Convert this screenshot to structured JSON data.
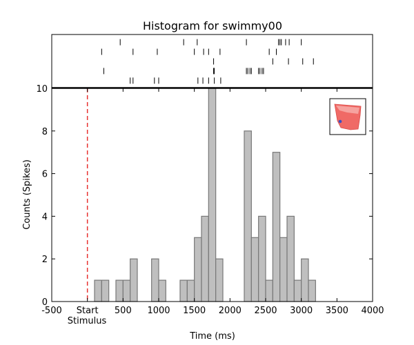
{
  "chart_data": {
    "type": "bar",
    "title": "Histogram for swimmy00",
    "xlabel": "Time (ms)",
    "ylabel": "Counts (Spikes)",
    "xlim": [
      -500,
      4000
    ],
    "ylim": [
      0,
      10
    ],
    "x_ticks": [
      {
        "value": -500,
        "label": "-500"
      },
      {
        "value": 0,
        "label": "Start"
      },
      {
        "value": 500,
        "label": "500"
      },
      {
        "value": 1000,
        "label": "1000"
      },
      {
        "value": 1500,
        "label": "1500"
      },
      {
        "value": 2000,
        "label": "2000"
      },
      {
        "value": 2500,
        "label": "2500"
      },
      {
        "value": 3000,
        "label": "3000"
      },
      {
        "value": 3500,
        "label": "3500"
      },
      {
        "value": 4000,
        "label": "4000"
      }
    ],
    "stimulus_label": "Stimulus",
    "y_ticks": [
      0,
      2,
      4,
      6,
      8,
      10
    ],
    "stimulus_onset_ms": 0,
    "stimulus_line_color": "#e8312f",
    "bar_fill": "#bfbfbf",
    "bar_edge": "#777777",
    "bin_width_ms": 100,
    "bins": [
      {
        "start": 100,
        "count": 1
      },
      {
        "start": 200,
        "count": 1
      },
      {
        "start": 400,
        "count": 1
      },
      {
        "start": 500,
        "count": 1
      },
      {
        "start": 600,
        "count": 2
      },
      {
        "start": 900,
        "count": 2
      },
      {
        "start": 1000,
        "count": 1
      },
      {
        "start": 1300,
        "count": 1
      },
      {
        "start": 1400,
        "count": 1
      },
      {
        "start": 1500,
        "count": 3
      },
      {
        "start": 1600,
        "count": 4
      },
      {
        "start": 1700,
        "count": 10
      },
      {
        "start": 1800,
        "count": 2
      },
      {
        "start": 2200,
        "count": 8
      },
      {
        "start": 2300,
        "count": 3
      },
      {
        "start": 2400,
        "count": 4
      },
      {
        "start": 2500,
        "count": 1
      },
      {
        "start": 2600,
        "count": 7
      },
      {
        "start": 2700,
        "count": 3
      },
      {
        "start": 2800,
        "count": 4
      },
      {
        "start": 2900,
        "count": 1
      },
      {
        "start": 3000,
        "count": 2
      },
      {
        "start": 3100,
        "count": 1
      }
    ],
    "raster_trials": [
      [
        460,
        1350,
        1540,
        2230,
        2680,
        2700,
        2720,
        2780,
        2830,
        3000
      ],
      [
        200,
        640,
        980,
        1500,
        1630,
        1700,
        1860,
        2550,
        2650
      ],
      [
        1770,
        2600,
        2820,
        3020,
        3170
      ],
      [
        230,
        1770,
        1780,
        2230,
        2250,
        2280,
        2300,
        2400,
        2420,
        2450,
        2470
      ],
      [
        600,
        640,
        940,
        1000,
        1550,
        1620,
        1700,
        1780,
        1870
      ]
    ],
    "inset": {
      "type": "icon",
      "icon": "red-cell-morphology-icon",
      "fill": "#f06a66",
      "marker": "#3b4fc4"
    }
  }
}
